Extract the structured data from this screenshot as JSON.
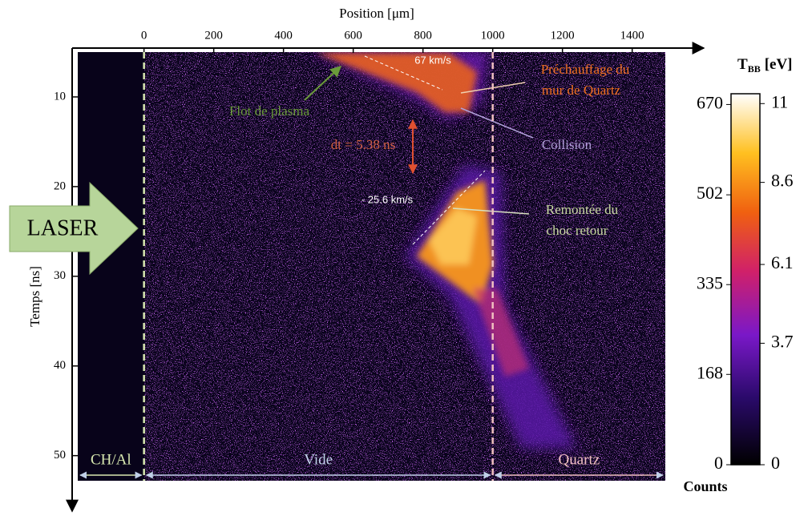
{
  "chart_data": {
    "type": "streak-image",
    "x_label": "Position [μm]",
    "y_label": "Temps [ns]",
    "xlim": [
      -190,
      1495
    ],
    "xticks": [
      0,
      200,
      400,
      600,
      800,
      1000,
      1200,
      1400
    ],
    "ylim": [
      5,
      52.8
    ],
    "yticks": [
      10,
      20,
      30,
      40,
      50
    ],
    "boundaries": [
      0,
      1000
    ],
    "regions": [
      "CH/Al",
      "Vide",
      "Quartz"
    ],
    "laser": "LASER",
    "annotations": {
      "speed_top": "67 km/s",
      "preheat": [
        "Préchauffage du",
        "mur de Quartz"
      ],
      "plasma": "Flot de plasma",
      "collision": "Collision",
      "dt": "dt = 5.38 ns",
      "speed_bottom": "- 25.6 km/s",
      "shock": [
        "Remontée du",
        "choc retour"
      ]
    },
    "colorbar": {
      "title": {
        "main": "T",
        "sub": "BB",
        "unit": "[eV]"
      },
      "counts_label": "Counts",
      "counts_lim": [
        0,
        690
      ],
      "counts_ticks": [
        670,
        502,
        335,
        168,
        0
      ],
      "ev_lim": [
        0,
        11.3
      ],
      "ev_ticks": [
        11,
        8.6,
        6.1,
        3.7,
        0
      ]
    }
  }
}
